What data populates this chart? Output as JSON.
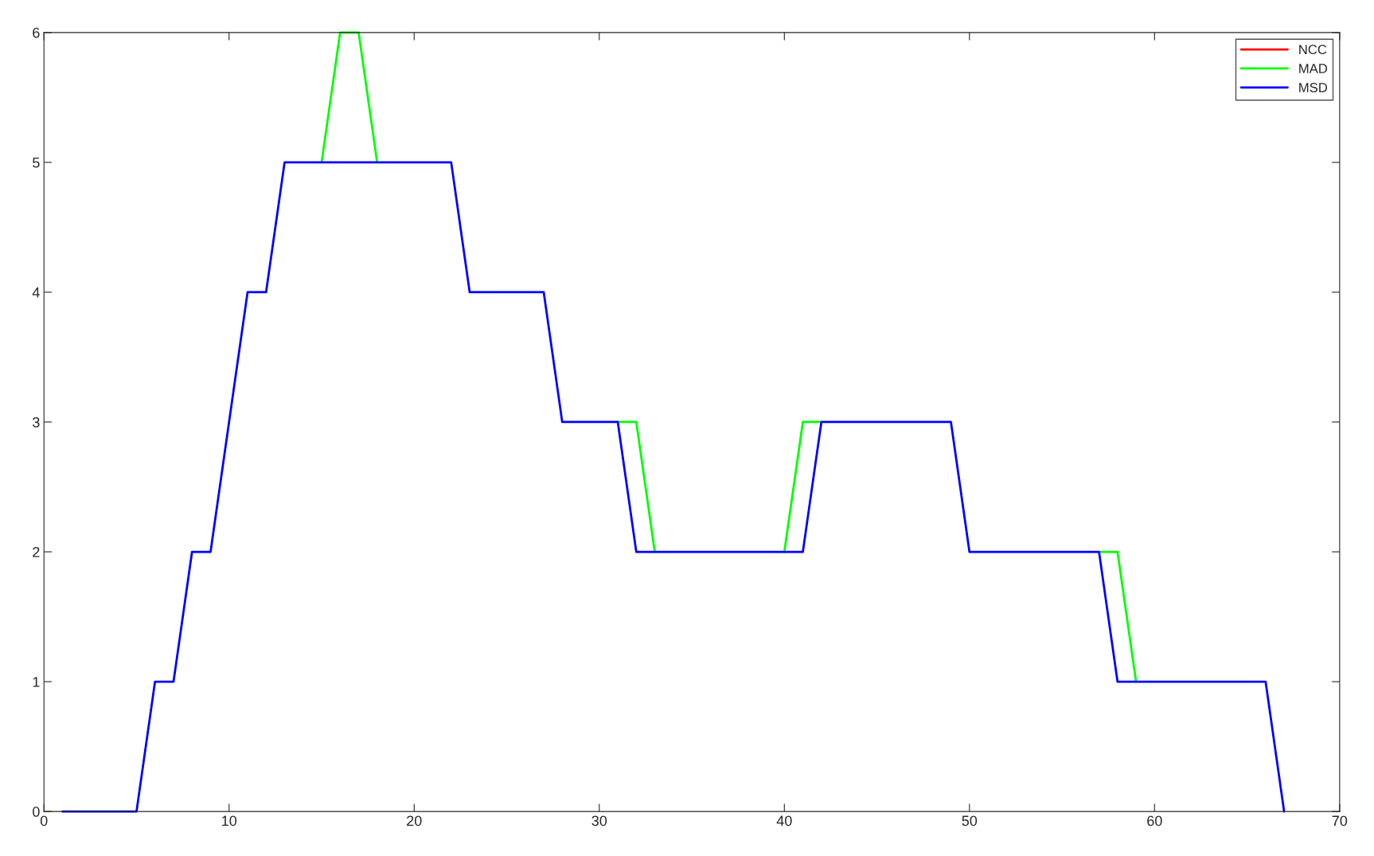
{
  "chart_data": {
    "type": "line",
    "x": [
      1,
      2,
      3,
      4,
      5,
      6,
      7,
      8,
      9,
      10,
      11,
      12,
      13,
      14,
      15,
      16,
      17,
      18,
      19,
      20,
      21,
      22,
      23,
      24,
      25,
      26,
      27,
      28,
      29,
      30,
      31,
      32,
      33,
      34,
      35,
      36,
      37,
      38,
      39,
      40,
      41,
      42,
      43,
      44,
      45,
      46,
      47,
      48,
      49,
      50,
      51,
      52,
      53,
      54,
      55,
      56,
      57,
      58,
      59,
      60,
      61,
      62,
      63,
      64,
      65,
      66,
      67
    ],
    "series": [
      {
        "name": "NCC",
        "color": "#ff0000",
        "values": [
          null,
          null,
          null,
          null,
          null,
          null,
          null,
          null,
          null,
          null,
          null,
          null,
          null,
          null,
          null,
          null,
          null,
          null,
          null,
          null,
          null,
          null,
          null,
          null,
          null,
          null,
          null,
          null,
          null,
          null,
          null,
          null,
          null,
          null,
          null,
          null,
          null,
          null,
          null,
          null,
          null,
          null,
          null,
          null,
          null,
          null,
          null,
          null,
          null,
          null,
          null,
          null,
          null,
          null,
          null,
          null,
          null,
          null,
          null,
          null,
          null,
          null,
          null,
          null,
          null,
          null,
          null
        ]
      },
      {
        "name": "MAD",
        "color": "#00ff00",
        "values": [
          null,
          null,
          null,
          null,
          null,
          null,
          null,
          null,
          null,
          null,
          null,
          null,
          null,
          null,
          5,
          6,
          6,
          5,
          null,
          null,
          null,
          null,
          null,
          null,
          null,
          null,
          null,
          null,
          null,
          null,
          3,
          3,
          2,
          null,
          null,
          null,
          null,
          null,
          null,
          2,
          3,
          3,
          null,
          null,
          null,
          null,
          null,
          null,
          null,
          null,
          null,
          null,
          null,
          null,
          null,
          null,
          2,
          2,
          1,
          null,
          null,
          null,
          null,
          null,
          null,
          null,
          null
        ]
      },
      {
        "name": "MSD",
        "color": "#0000ff",
        "values": [
          0,
          0,
          0,
          0,
          0,
          1,
          1,
          2,
          2,
          3,
          4,
          4,
          5,
          5,
          5,
          5,
          5,
          5,
          5,
          5,
          5,
          5,
          4,
          4,
          4,
          4,
          4,
          3,
          3,
          3,
          3,
          2,
          2,
          2,
          2,
          2,
          2,
          2,
          2,
          2,
          2,
          3,
          3,
          3,
          3,
          3,
          3,
          3,
          3,
          2,
          2,
          2,
          2,
          2,
          2,
          2,
          2,
          1,
          1,
          1,
          1,
          1,
          1,
          1,
          1,
          1,
          0
        ]
      }
    ],
    "xlim": [
      0,
      70
    ],
    "xticks": [
      0,
      10,
      20,
      30,
      40,
      50,
      60,
      70
    ],
    "ylim": [
      0,
      6
    ],
    "yticks": [
      0,
      1,
      2,
      3,
      4,
      5,
      6
    ],
    "grid": false,
    "legend": "top right",
    "line_style": "solid",
    "marker": "none"
  }
}
